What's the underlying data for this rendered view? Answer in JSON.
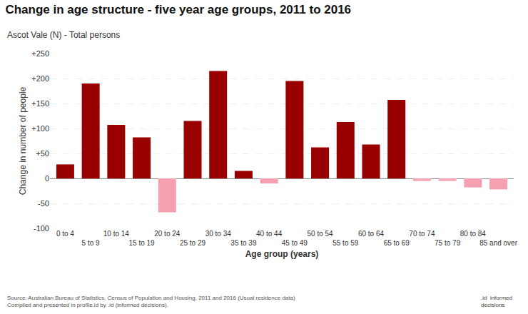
{
  "chart_data": {
    "type": "bar",
    "title": "Change in age structure - five year age groups, 2011 to 2016",
    "subtitle": "Ascot Vale (N) - Total persons",
    "xlabel": "Age group (years)",
    "ylabel": "Change in number of people",
    "categories": [
      "0 to 4",
      "5 to 9",
      "10 to 14",
      "15 to 19",
      "20 to 24",
      "25 to 29",
      "30 to 34",
      "35 to 39",
      "40 to 44",
      "45 to 49",
      "50 to 54",
      "55 to 59",
      "60 to 64",
      "65 to 69",
      "70 to 74",
      "75 to 79",
      "80 to 84",
      "85 and over"
    ],
    "values": [
      28,
      190,
      107,
      82,
      -68,
      115,
      215,
      15,
      -10,
      195,
      62,
      113,
      68,
      157,
      -5,
      -5,
      -18,
      -22
    ],
    "colors": [
      "#990000",
      "#990000",
      "#990000",
      "#990000",
      "#f4a0b0",
      "#990000",
      "#990000",
      "#990000",
      "#f4a0b0",
      "#990000",
      "#990000",
      "#990000",
      "#990000",
      "#990000",
      "#f4a0b0",
      "#f4a0b0",
      "#f4a0b0",
      "#f4a0b0"
    ],
    "ylim": [
      -100,
      250
    ],
    "yticks": [
      -100,
      -50,
      0,
      {
        "value": 50,
        "label": "+50"
      },
      {
        "value": 100,
        "label": "+100"
      },
      {
        "value": 150,
        "label": "+150"
      },
      {
        "value": 200,
        "label": "+200"
      },
      {
        "value": 250,
        "label": "+250"
      }
    ],
    "grid": true,
    "annotations": [
      "Source: Australian Bureau of Statistics, Census of Population and Housing, 2011 and 2016 (Usual residence data)\nCompiled and presented in profile.id by .id (informed decisions).",
      ".id  informed\n      decisions"
    ]
  }
}
